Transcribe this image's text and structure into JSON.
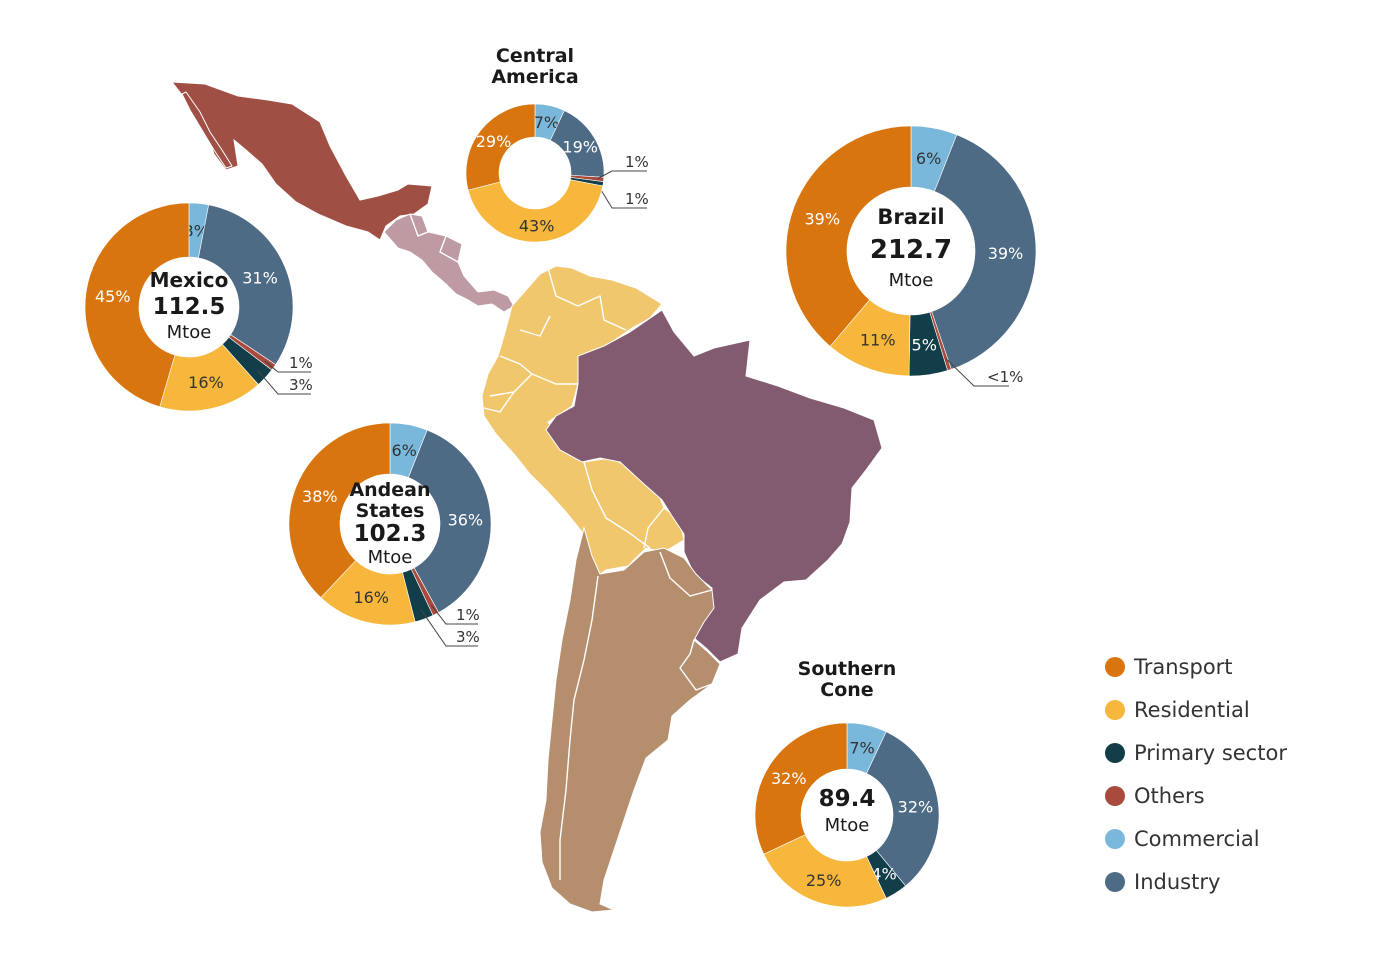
{
  "legend": [
    {
      "key": "transport",
      "label": "Transport",
      "color": "#D9750F"
    },
    {
      "key": "residential",
      "label": "Residential",
      "color": "#F6B73C"
    },
    {
      "key": "primary",
      "label": "Primary sector",
      "color": "#123E4A"
    },
    {
      "key": "others",
      "label": "Others",
      "color": "#A84A3C"
    },
    {
      "key": "commercial",
      "label": "Commercial",
      "color": "#79B8DB"
    },
    {
      "key": "industry",
      "label": "Industry",
      "color": "#4E6B86"
    }
  ],
  "chart_data": [
    {
      "type": "pie",
      "region": "Mexico",
      "title_lines": [
        "Mexico"
      ],
      "total": "112.5",
      "unit": "Mtoe",
      "slices": [
        {
          "category": "Commercial",
          "value": 3,
          "label": "3%"
        },
        {
          "category": "Industry",
          "value": 31,
          "label": "31%"
        },
        {
          "category": "Others",
          "value": 1,
          "label": "1%"
        },
        {
          "category": "Primary sector",
          "value": 3,
          "label": "3%"
        },
        {
          "category": "Residential",
          "value": 16,
          "label": "16%"
        },
        {
          "category": "Transport",
          "value": 45,
          "label": "45%"
        }
      ]
    },
    {
      "type": "pie",
      "region": "Central America",
      "title_lines": [
        "Central",
        "America"
      ],
      "total": "",
      "unit": "",
      "slices": [
        {
          "category": "Commercial",
          "value": 7,
          "label": "7%"
        },
        {
          "category": "Industry",
          "value": 19,
          "label": "19%"
        },
        {
          "category": "Others",
          "value": 1,
          "label": "1%"
        },
        {
          "category": "Primary sector",
          "value": 1,
          "label": "1%"
        },
        {
          "category": "Residential",
          "value": 43,
          "label": "43%"
        },
        {
          "category": "Transport",
          "value": 29,
          "label": "29%"
        }
      ]
    },
    {
      "type": "pie",
      "region": "Brazil",
      "title_lines": [
        "Brazil"
      ],
      "total": "212.7",
      "unit": "Mtoe",
      "slices": [
        {
          "category": "Commercial",
          "value": 6,
          "label": "6%"
        },
        {
          "category": "Industry",
          "value": 39,
          "label": "39%"
        },
        {
          "category": "Others",
          "value": 0.5,
          "label": "<1%"
        },
        {
          "category": "Primary sector",
          "value": 5,
          "label": "5%"
        },
        {
          "category": "Residential",
          "value": 11,
          "label": "11%"
        },
        {
          "category": "Transport",
          "value": 39,
          "label": "39%"
        }
      ]
    },
    {
      "type": "pie",
      "region": "Andean States",
      "title_lines": [
        "Andean",
        "States"
      ],
      "total": "102.3",
      "unit": "Mtoe",
      "slices": [
        {
          "category": "Commercial",
          "value": 6,
          "label": "6%"
        },
        {
          "category": "Industry",
          "value": 36,
          "label": "36%"
        },
        {
          "category": "Others",
          "value": 1,
          "label": "1%"
        },
        {
          "category": "Primary sector",
          "value": 3,
          "label": "3%"
        },
        {
          "category": "Residential",
          "value": 16,
          "label": "16%"
        },
        {
          "category": "Transport",
          "value": 38,
          "label": "38%"
        }
      ]
    },
    {
      "type": "pie",
      "region": "Southern Cone",
      "title_lines": [
        "Southern",
        "Cone"
      ],
      "total": "89.4",
      "unit": "Mtoe",
      "slices": [
        {
          "category": "Commercial",
          "value": 7,
          "label": "7%"
        },
        {
          "category": "Industry",
          "value": 32,
          "label": "32%"
        },
        {
          "category": "Primary sector",
          "value": 4,
          "label": "4%"
        },
        {
          "category": "Residential",
          "value": 25,
          "label": "25%"
        },
        {
          "category": "Transport",
          "value": 32,
          "label": "32%"
        }
      ]
    }
  ],
  "map_colors": {
    "mexico": "#A04F45",
    "central_america": "#BE9BA3",
    "andean": "#F1C76E",
    "brazil": "#825B70",
    "southern_cone": "#B58E6E"
  }
}
